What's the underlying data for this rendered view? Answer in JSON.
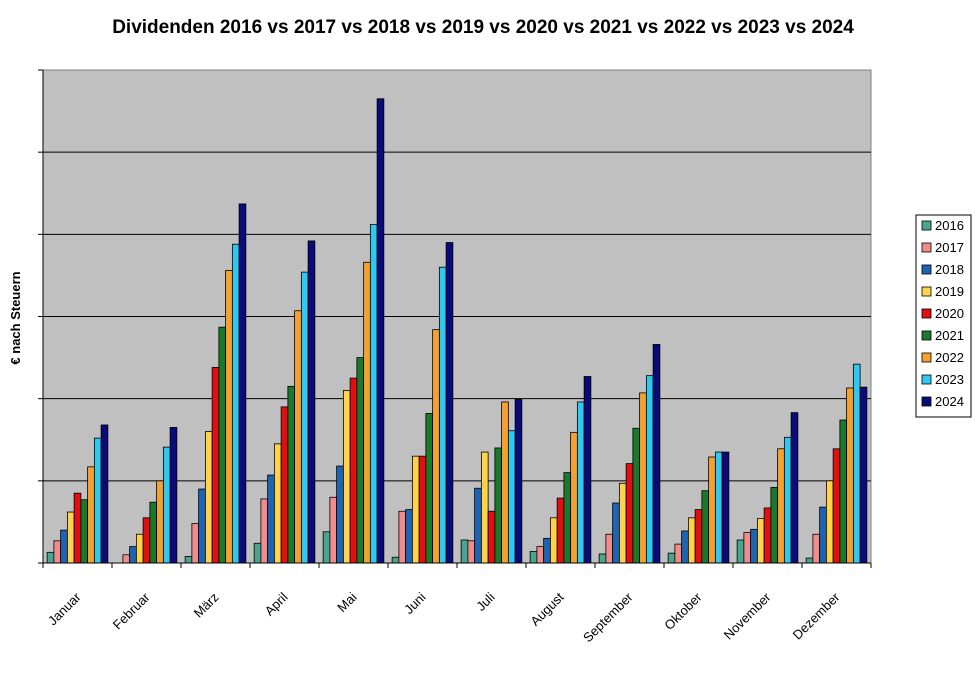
{
  "chart_data": {
    "type": "bar",
    "title": "Dividenden 2016 vs 2017 vs 2018 vs 2019 vs 2020 vs 2021 vs 2022 vs 2023 vs 2024",
    "ylabel": "€ nach Steuern",
    "xlabel": "",
    "ylim": [
      0,
      600
    ],
    "y_tick_values": [
      0,
      100,
      200,
      300,
      400,
      500,
      600
    ],
    "y_tick_labels_shown": false,
    "grid": true,
    "legend_position": "right",
    "plot_background": "#c0c0c0",
    "categories": [
      "Januar",
      "Februar",
      "März",
      "April",
      "Mai",
      "Juni",
      "Juli",
      "August",
      "September",
      "Oktober",
      "November",
      "Dezember"
    ],
    "series": [
      {
        "name": "2016",
        "color": "#4aa58f",
        "values": [
          13,
          0,
          8,
          24,
          38,
          7,
          28,
          14,
          11,
          12,
          28,
          6
        ]
      },
      {
        "name": "2017",
        "color": "#f08c8c",
        "values": [
          27,
          10,
          48,
          78,
          80,
          63,
          27,
          20,
          35,
          23,
          37,
          35
        ]
      },
      {
        "name": "2018",
        "color": "#1e64b4",
        "values": [
          40,
          20,
          90,
          107,
          118,
          65,
          91,
          30,
          73,
          39,
          41,
          68
        ]
      },
      {
        "name": "2019",
        "color": "#ffd24a",
        "values": [
          62,
          35,
          160,
          145,
          210,
          130,
          135,
          55,
          97,
          55,
          54,
          100
        ]
      },
      {
        "name": "2020",
        "color": "#e01010",
        "values": [
          85,
          55,
          238,
          190,
          225,
          130,
          63,
          79,
          121,
          65,
          67,
          139
        ]
      },
      {
        "name": "2021",
        "color": "#1a7a2a",
        "values": [
          77,
          74,
          287,
          215,
          250,
          182,
          140,
          110,
          164,
          88,
          92,
          174
        ]
      },
      {
        "name": "2022",
        "color": "#f5a030",
        "values": [
          117,
          100,
          356,
          307,
          366,
          284,
          196,
          159,
          207,
          129,
          139,
          213
        ]
      },
      {
        "name": "2023",
        "color": "#30c8f0",
        "values": [
          152,
          141,
          388,
          354,
          412,
          360,
          161,
          196,
          228,
          135,
          153,
          242
        ]
      },
      {
        "name": "2024",
        "color": "#0a0a7a",
        "values": [
          168,
          165,
          437,
          392,
          565,
          390,
          199,
          227,
          266,
          135,
          183,
          214
        ]
      }
    ]
  }
}
